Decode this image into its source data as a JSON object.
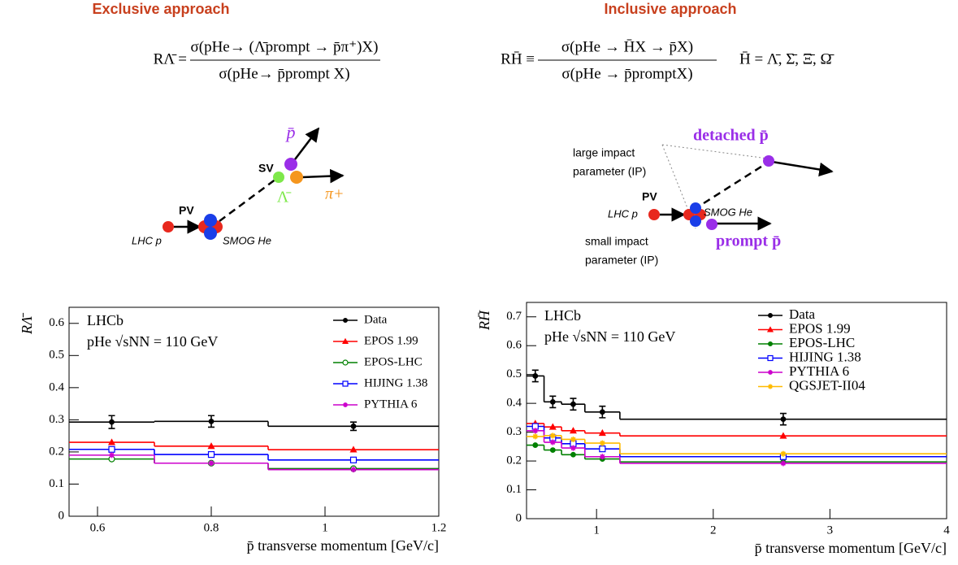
{
  "headers": [
    "Exclusive approach",
    "Inclusive approach"
  ],
  "formulas": [
    {
      "lhs": "RΛ̄ =",
      "numerator": "σ(pHe→ (Λ̄prompt → p̄π⁺)X)",
      "denominator": "σ(pHe→ p̄prompt X)"
    },
    {
      "lhs": "RH̄ ≡",
      "numerator": "σ(pHe → H̄X → p̄X)",
      "denominator": "σ(pHe → p̄promptX)",
      "extra": "H̄ = Λ̄, Σ̄, Ξ̄, Ω̄"
    }
  ],
  "diagrams": [
    {
      "labels": [
        "p̄",
        "SV",
        "Λ̄",
        "π+",
        "PV",
        "LHC p",
        "SMOG He"
      ]
    },
    {
      "labels": [
        "detached p̄",
        "large impact",
        "parameter (IP)",
        "PV",
        "LHC p",
        "SMOG He",
        "small impact",
        "parameter (IP)",
        "prompt p̄"
      ]
    }
  ],
  "chart_data": [
    {
      "type": "histogram",
      "ylabel": "RΛ̄",
      "xlabel": "p̄ transverse momentum [GeV/c]",
      "annotations": [
        "LHCb",
        "pHe √sNN = 110 GeV"
      ],
      "bins": [
        0.55,
        0.7,
        0.9,
        1.2
      ],
      "xlim": [
        0.55,
        1.2
      ],
      "xticks": [
        0.6,
        0.8,
        1,
        1.2
      ],
      "ylim": [
        0,
        0.65
      ],
      "yticks": [
        0,
        0.1,
        0.2,
        0.3,
        0.4,
        0.5,
        0.6
      ],
      "legend": "upper right",
      "series": [
        {
          "name": "Data",
          "color": "#000000",
          "marker": "dot",
          "values": [
            0.293,
            0.295,
            0.28
          ],
          "errors": [
            0.02,
            0.018,
            0.013
          ]
        },
        {
          "name": "EPOS 1.99",
          "color": "#ff0000",
          "marker": "triangle",
          "values": [
            0.23,
            0.218,
            0.207
          ]
        },
        {
          "name": "EPOS-LHC",
          "color": "#008000",
          "marker": "open-circle",
          "values": [
            0.178,
            0.165,
            0.148
          ]
        },
        {
          "name": "HIJING 1.38",
          "color": "#0000ff",
          "marker": "open-square",
          "values": [
            0.208,
            0.192,
            0.175
          ]
        },
        {
          "name": "PYTHIA 6",
          "color": "#cc00cc",
          "marker": "star",
          "values": [
            0.19,
            0.165,
            0.145
          ]
        }
      ]
    },
    {
      "type": "histogram",
      "ylabel": "RH̄",
      "xlabel": "p̄ transverse momentum [GeV/c]",
      "annotations": [
        "LHCb",
        "pHe √sNN = 110 GeV"
      ],
      "bins": [
        0.4,
        0.55,
        0.7,
        0.9,
        1.2,
        4
      ],
      "xlim": [
        0.4,
        4
      ],
      "xticks": [
        1,
        2,
        3,
        4
      ],
      "ylim": [
        0,
        0.75
      ],
      "yticks": [
        0,
        0.1,
        0.2,
        0.3,
        0.4,
        0.5,
        0.6,
        0.7
      ],
      "legend": "upper right",
      "series": [
        {
          "name": "Data",
          "color": "#000000",
          "marker": "dot",
          "values": [
            0.495,
            0.405,
            0.397,
            0.37,
            0.345
          ],
          "errors": [
            0.02,
            0.02,
            0.02,
            0.02,
            0.02
          ]
        },
        {
          "name": "EPOS 1.99",
          "color": "#ff0000",
          "marker": "triangle",
          "values": [
            0.33,
            0.318,
            0.305,
            0.297,
            0.287
          ]
        },
        {
          "name": "EPOS-LHC",
          "color": "#008000",
          "marker": "dot",
          "values": [
            0.255,
            0.238,
            0.222,
            0.207,
            0.197
          ]
        },
        {
          "name": "HIJING 1.38",
          "color": "#0000ff",
          "marker": "open-square",
          "values": [
            0.32,
            0.28,
            0.26,
            0.242,
            0.215
          ]
        },
        {
          "name": "PYTHIA 6",
          "color": "#cc00cc",
          "marker": "star",
          "values": [
            0.305,
            0.265,
            0.245,
            0.215,
            0.192
          ]
        },
        {
          "name": "QGSJET-II04",
          "color": "#ffbb00",
          "marker": "star",
          "values": [
            0.285,
            0.288,
            0.275,
            0.262,
            0.225
          ]
        }
      ]
    }
  ]
}
